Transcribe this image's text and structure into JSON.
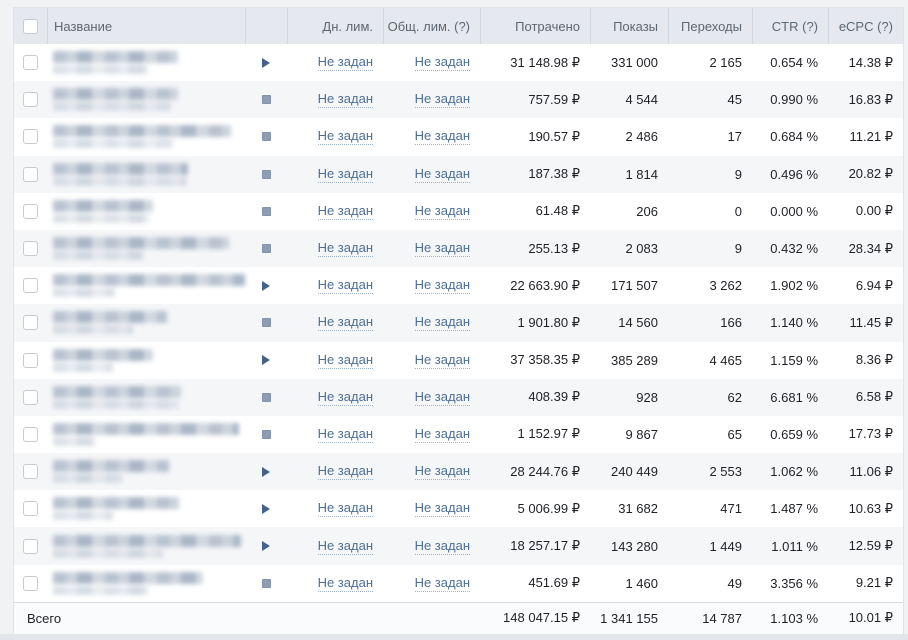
{
  "table": {
    "header": {
      "name": "Название",
      "daily_limit": "Дн. лим.",
      "total_limit": "Общ. лим. (?)",
      "spent": "Потрачено",
      "impressions": "Показы",
      "clicks": "Переходы",
      "ctr": "CTR (?)",
      "ecpc": "eCPC (?)"
    },
    "rows": [
      {
        "status": "active",
        "daily_limit": "Не задан",
        "total_limit": "Не задан",
        "spent": "31 148.98 ₽",
        "impressions": "331 000",
        "clicks": "2 165",
        "ctr": "0.654 %",
        "ecpc": "14.38 ₽",
        "name_redacted": {
          "w1": 125,
          "w2": 95
        }
      },
      {
        "status": "stopped",
        "daily_limit": "Не задан",
        "total_limit": "Не задан",
        "spent": "757.59 ₽",
        "impressions": "4 544",
        "clicks": "45",
        "ctr": "0.990 %",
        "ecpc": "16.83 ₽",
        "name_redacted": {
          "w1": 125,
          "w2": 118
        }
      },
      {
        "status": "stopped",
        "daily_limit": "Не задан",
        "total_limit": "Не задан",
        "spent": "190.57 ₽",
        "impressions": "2 486",
        "clicks": "17",
        "ctr": "0.684 %",
        "ecpc": "11.21 ₽",
        "name_redacted": {
          "w1": 178,
          "w2": 120
        }
      },
      {
        "status": "stopped",
        "daily_limit": "Не задан",
        "total_limit": "Не задан",
        "spent": "187.38 ₽",
        "impressions": "1 814",
        "clicks": "9",
        "ctr": "0.496 %",
        "ecpc": "20.82 ₽",
        "name_redacted": {
          "w1": 135,
          "w2": 133
        }
      },
      {
        "status": "stopped",
        "daily_limit": "Не задан",
        "total_limit": "Не задан",
        "spent": "61.48 ₽",
        "impressions": "206",
        "clicks": "0",
        "ctr": "0.000 %",
        "ecpc": "0.00 ₽",
        "name_redacted": {
          "w1": 100,
          "w2": 96
        }
      },
      {
        "status": "stopped",
        "daily_limit": "Не задан",
        "total_limit": "Не задан",
        "spent": "255.13 ₽",
        "impressions": "2 083",
        "clicks": "9",
        "ctr": "0.432 %",
        "ecpc": "28.34 ₽",
        "name_redacted": {
          "w1": 176,
          "w2": 90
        }
      },
      {
        "status": "active",
        "daily_limit": "Не задан",
        "total_limit": "Не задан",
        "spent": "22 663.90 ₽",
        "impressions": "171 507",
        "clicks": "3 262",
        "ctr": "1.902 %",
        "ecpc": "6.94 ₽",
        "name_redacted": {
          "w1": 192,
          "w2": 62
        }
      },
      {
        "status": "stopped",
        "daily_limit": "Не задан",
        "total_limit": "Не задан",
        "spent": "1 901.80 ₽",
        "impressions": "14 560",
        "clicks": "166",
        "ctr": "1.140 %",
        "ecpc": "11.45 ₽",
        "name_redacted": {
          "w1": 114,
          "w2": 80
        }
      },
      {
        "status": "active",
        "daily_limit": "Не задан",
        "total_limit": "Не задан",
        "spent": "37 358.35 ₽",
        "impressions": "385 289",
        "clicks": "4 465",
        "ctr": "1.159 %",
        "ecpc": "8.36 ₽",
        "name_redacted": {
          "w1": 100,
          "w2": 60
        }
      },
      {
        "status": "stopped",
        "daily_limit": "Не задан",
        "total_limit": "Не задан",
        "spent": "408.39 ₽",
        "impressions": "928",
        "clicks": "62",
        "ctr": "6.681 %",
        "ecpc": "6.58 ₽",
        "name_redacted": {
          "w1": 128,
          "w2": 126
        }
      },
      {
        "status": "stopped",
        "daily_limit": "Не задан",
        "total_limit": "Не задан",
        "spent": "1 152.97 ₽",
        "impressions": "9 867",
        "clicks": "65",
        "ctr": "0.659 %",
        "ecpc": "17.73 ₽",
        "name_redacted": {
          "w1": 186,
          "w2": 42
        }
      },
      {
        "status": "active",
        "daily_limit": "Не задан",
        "total_limit": "Не задан",
        "spent": "28 244.76 ₽",
        "impressions": "240 449",
        "clicks": "2 553",
        "ctr": "1.062 %",
        "ecpc": "11.06 ₽",
        "name_redacted": {
          "w1": 116,
          "w2": 70
        }
      },
      {
        "status": "active",
        "daily_limit": "Не задан",
        "total_limit": "Не задан",
        "spent": "5 006.99 ₽",
        "impressions": "31 682",
        "clicks": "471",
        "ctr": "1.487 %",
        "ecpc": "10.63 ₽",
        "name_redacted": {
          "w1": 126,
          "w2": 60
        }
      },
      {
        "status": "active",
        "daily_limit": "Не задан",
        "total_limit": "Не задан",
        "spent": "18 257.17 ₽",
        "impressions": "143 280",
        "clicks": "1 449",
        "ctr": "1.011 %",
        "ecpc": "12.59 ₽",
        "name_redacted": {
          "w1": 188,
          "w2": 110
        }
      },
      {
        "status": "stopped",
        "daily_limit": "Не задан",
        "total_limit": "Не задан",
        "spent": "451.69 ₽",
        "impressions": "1 460",
        "clicks": "49",
        "ctr": "3.356 %",
        "ecpc": "9.21 ₽",
        "name_redacted": {
          "w1": 150,
          "w2": 96
        }
      }
    ],
    "footer": {
      "label": "Всего",
      "spent": "148 047.15 ₽",
      "impressions": "1 341 155",
      "clicks": "14 787",
      "ctr": "1.103 %",
      "ecpc": "10.01 ₽"
    }
  },
  "colors": {
    "header_bg": "#e5e8ee",
    "row_alt_bg": "#f5f6f8",
    "link": "#4d6f95",
    "play_icon": "#44618c",
    "stop_icon": "#8e9db3"
  }
}
